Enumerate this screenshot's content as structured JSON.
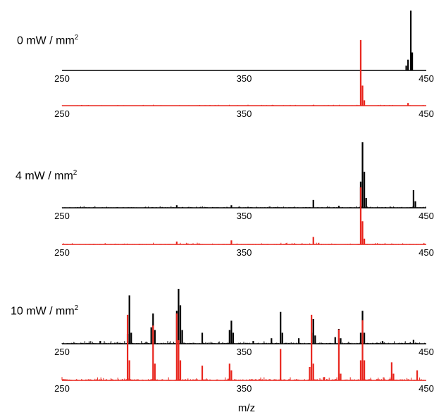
{
  "labels": {
    "panel_0": {
      "prefix": "0 mW / mm",
      "sup": "2"
    },
    "panel_4": {
      "prefix": "4 mW / mm",
      "sup": "2"
    },
    "panel_10": {
      "prefix": "10 mW / mm",
      "sup": "2"
    }
  },
  "chart_data": {
    "type": "line",
    "xlabel": "m/z",
    "ylabel": "",
    "xlim": [
      250,
      450
    ],
    "colors": {
      "black": "#000000",
      "red": "#e8261e"
    },
    "ticks": [
      250,
      350,
      450
    ],
    "panels": [
      {
        "title": "0 mW / mm2",
        "series": [
          {
            "color": "black",
            "noise": 0.0,
            "peaks": [
              [
                439,
                0.08
              ],
              [
                440,
                0.18
              ],
              [
                441.5,
                1.0
              ],
              [
                442.3,
                0.3
              ]
            ]
          },
          {
            "color": "red",
            "noise": 0.006,
            "peaks": [
              [
                414,
                0.98
              ],
              [
                415,
                0.3
              ],
              [
                416,
                0.08
              ],
              [
                440,
                0.04
              ]
            ]
          }
        ]
      },
      {
        "title": "4 mW / mm2",
        "series": [
          {
            "color": "black",
            "noise": 0.01,
            "peaks": [
              [
                313,
                0.04
              ],
              [
                343,
                0.04
              ],
              [
                388,
                0.12
              ],
              [
                402,
                0.03
              ],
              [
                414,
                0.4
              ],
              [
                415,
                1.0
              ],
              [
                416,
                0.55
              ],
              [
                417,
                0.15
              ],
              [
                443,
                0.27
              ],
              [
                444,
                0.1
              ]
            ]
          },
          {
            "color": "red",
            "noise": 0.012,
            "peaks": [
              [
                313,
                0.05
              ],
              [
                343,
                0.07
              ],
              [
                388,
                0.13
              ],
              [
                414,
                0.99
              ],
              [
                415,
                0.4
              ],
              [
                416,
                0.1
              ]
            ]
          }
        ]
      },
      {
        "title": "10 mW / mm2",
        "series": [
          {
            "color": "black",
            "noise": 0.02,
            "peaks": [
              [
                271,
                0.05
              ],
              [
                286,
                0.18
              ],
              [
                287,
                0.88
              ],
              [
                288,
                0.2
              ],
              [
                299,
                0.3
              ],
              [
                300,
                0.55
              ],
              [
                301,
                0.25
              ],
              [
                313,
                0.6
              ],
              [
                314,
                1.0
              ],
              [
                315,
                0.7
              ],
              [
                316,
                0.25
              ],
              [
                327,
                0.2
              ],
              [
                342,
                0.25
              ],
              [
                343,
                0.42
              ],
              [
                344,
                0.2
              ],
              [
                355,
                0.05
              ],
              [
                365,
                0.1
              ],
              [
                370,
                0.58
              ],
              [
                371,
                0.2
              ],
              [
                380,
                0.1
              ],
              [
                387,
                0.2
              ],
              [
                388,
                0.45
              ],
              [
                389,
                0.15
              ],
              [
                400,
                0.12
              ],
              [
                402,
                0.27
              ],
              [
                403,
                0.1
              ],
              [
                414,
                0.2
              ],
              [
                415,
                0.6
              ],
              [
                416,
                0.2
              ],
              [
                426,
                0.05
              ],
              [
                443,
                0.07
              ]
            ]
          },
          {
            "color": "red",
            "noise": 0.02,
            "peaks": [
              [
                286,
                0.98
              ],
              [
                287,
                0.3
              ],
              [
                300,
                0.82
              ],
              [
                301,
                0.25
              ],
              [
                313,
                1.0
              ],
              [
                314,
                0.6
              ],
              [
                315,
                0.3
              ],
              [
                327,
                0.22
              ],
              [
                342,
                0.25
              ],
              [
                343,
                0.15
              ],
              [
                370,
                0.47
              ],
              [
                386,
                0.2
              ],
              [
                387,
                0.98
              ],
              [
                388,
                0.25
              ],
              [
                394,
                0.05
              ],
              [
                402,
                0.76
              ],
              [
                403,
                0.1
              ],
              [
                414,
                0.3
              ],
              [
                415,
                0.9
              ],
              [
                416,
                0.3
              ],
              [
                431,
                0.27
              ],
              [
                432,
                0.1
              ],
              [
                445,
                0.15
              ]
            ]
          }
        ]
      }
    ]
  }
}
